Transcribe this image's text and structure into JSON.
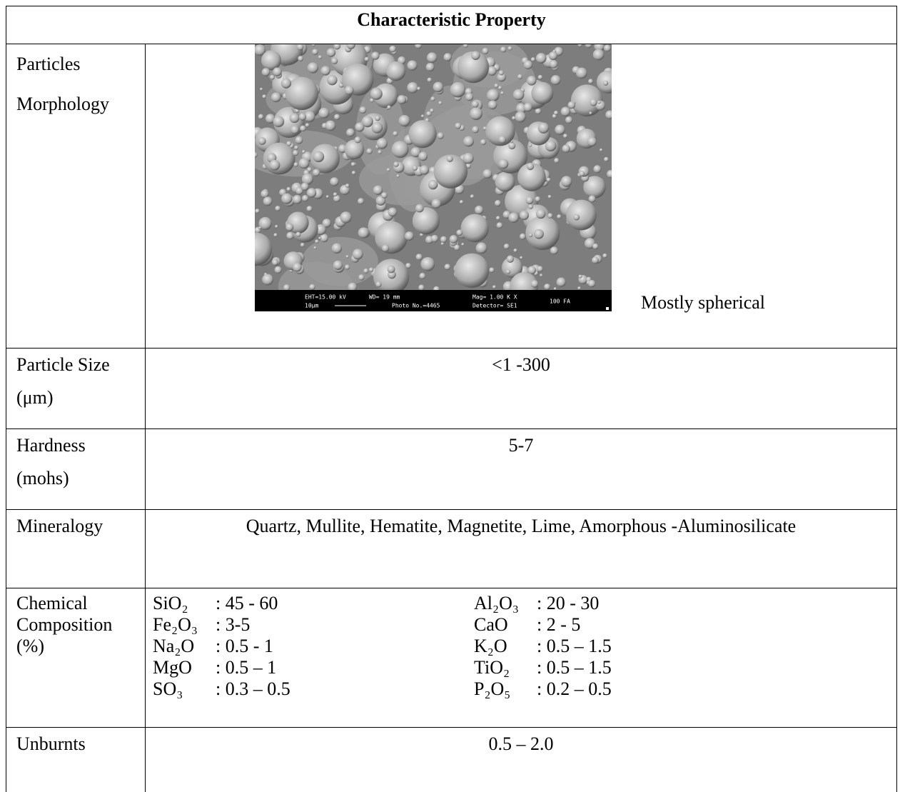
{
  "header": {
    "title": "Characteristic Property"
  },
  "rows": [
    {
      "property": [
        "Particles",
        "Morphology"
      ],
      "value": "Mostly spherical",
      "image": {
        "labels": [
          "EHT=15.00 kV",
          "10μm",
          "WD= 19 mm",
          "Photo No.=4465",
          "Mag= 1.00 K X",
          "Detector= SE1",
          "100 FA"
        ]
      }
    },
    {
      "property": [
        "Particle Size",
        "(μm)"
      ],
      "value": "<1 -300"
    },
    {
      "property": [
        "Hardness",
        "(mohs)"
      ],
      "value": "5-7"
    },
    {
      "property": [
        "Mineralogy"
      ],
      "value": "Quartz, Mullite, Hematite, Magnetite, Lime,  Amorphous -Aluminosilicate"
    },
    {
      "property": [
        "Chemical",
        "Composition",
        "(%)"
      ],
      "composition": [
        [
          {
            "name": "SiO₂",
            "value": ": 45 - 60"
          },
          {
            "name": "Al₂O₃",
            "value": ": 20 - 30"
          }
        ],
        [
          {
            "name": "Fe₂O₃",
            "value": ": 3-5"
          },
          {
            "name": "CaO",
            "value": ": 2 - 5"
          }
        ],
        [
          {
            "name": "Na₂O",
            "value": ": 0.5 - 1"
          },
          {
            "name": "K₂O",
            "value": ": 0.5 – 1.5"
          }
        ],
        [
          {
            "name": "MgO",
            "value": ": 0.5 – 1"
          },
          {
            "name": "TiO₂",
            "value": ": 0.5 – 1.5"
          }
        ],
        [
          {
            "name": "SO₃",
            "value": ": 0.3 – 0.5"
          },
          {
            "name": "P₂O₅",
            "value": ": 0.2 – 0.5"
          }
        ]
      ]
    },
    {
      "property": [
        "Unburnts"
      ],
      "value": "0.5 – 2.0"
    }
  ]
}
